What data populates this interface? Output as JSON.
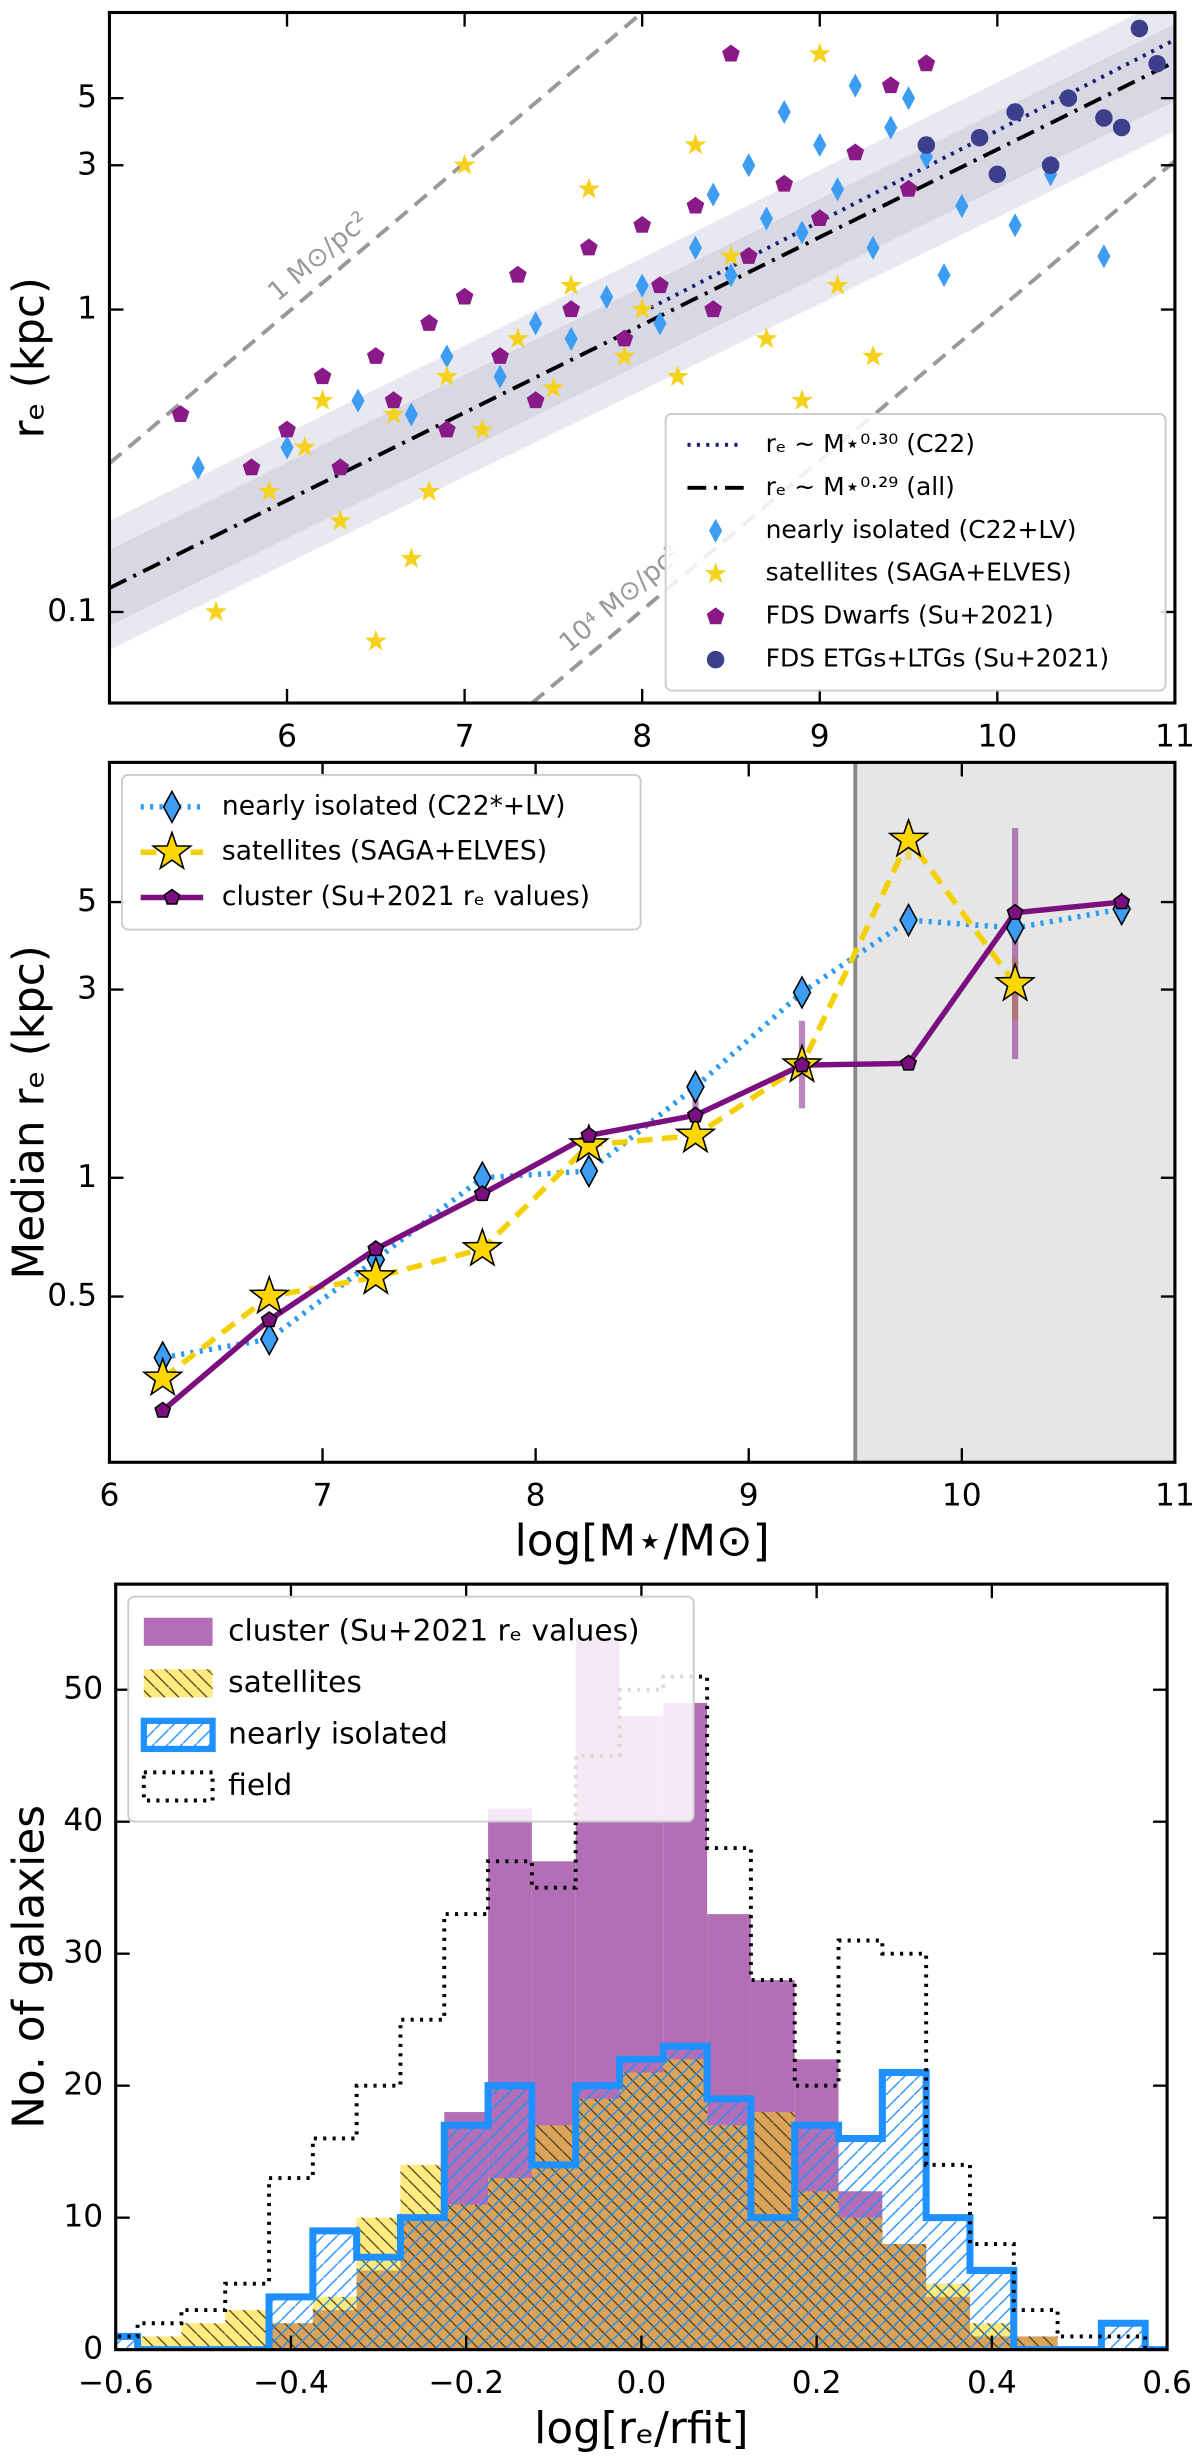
{
  "chart_data": [
    {
      "type": "scatter",
      "ylabel": "rₑ (kpc)",
      "xlim": [
        5,
        11
      ],
      "ylim": [
        0.05,
        9.6
      ],
      "yscale": "log",
      "xticks": [
        6,
        7,
        8,
        9,
        10,
        11
      ],
      "yticks": [
        0.1,
        1,
        3,
        5
      ],
      "legend": "lower right",
      "bands": [
        {
          "x": [
            5,
            11
          ],
          "lower": [
            0.075,
            3.9
          ],
          "upper": [
            0.2,
            11
          ]
        },
        {
          "x": [
            5,
            11
          ],
          "lower": [
            0.09,
            4.9
          ],
          "upper": [
            0.16,
            8.8
          ]
        }
      ],
      "reference_lines": [
        {
          "label": "1 M⊙/pc²",
          "x": [
            5,
            8
          ],
          "values": [
            0.31,
            9.6
          ]
        },
        {
          "label": "10⁴ M⊙/pc²",
          "x": [
            7.38,
            11
          ],
          "values": [
            0.05,
            3.1
          ]
        }
      ],
      "series": [
        {
          "name": "rₑ ~ M⋆⁰·³⁰ (C22)",
          "kind": "line",
          "linestyle": "dotted",
          "color": "#1c1c70",
          "x": [
            8,
            11
          ],
          "values": [
            0.98,
            7.8
          ]
        },
        {
          "name": "rₑ ~ M⋆⁰·²⁹ (all)",
          "kind": "line",
          "linestyle": "dashdot",
          "color": "#000000",
          "x": [
            5,
            11
          ],
          "values": [
            0.12,
            6.6
          ]
        },
        {
          "name": "nearly isolated (C22+LV)",
          "marker": "diamond",
          "color": "#3d9df3",
          "x": [
            5.5,
            6.0,
            6.4,
            6.7,
            6.9,
            7.2,
            7.4,
            7.6,
            7.8,
            8.0,
            8.1,
            8.3,
            8.4,
            8.5,
            8.6,
            8.7,
            8.8,
            8.9,
            9.0,
            9.1,
            9.2,
            9.3,
            9.4,
            9.5,
            9.6,
            9.7,
            9.8,
            10.1,
            10.3,
            10.6
          ],
          "values": [
            0.3,
            0.35,
            0.5,
            0.45,
            0.7,
            0.6,
            0.9,
            0.8,
            1.1,
            1.2,
            0.9,
            1.6,
            2.4,
            1.3,
            3.0,
            2.0,
            4.5,
            1.8,
            3.5,
            2.5,
            5.5,
            1.6,
            4.0,
            5.0,
            3.2,
            1.3,
            2.2,
            1.9,
            2.8,
            1.5
          ]
        },
        {
          "name": "satellites (SAGA+ELVES)",
          "marker": "star",
          "color": "#f5d21f",
          "x": [
            5.6,
            5.9,
            6.1,
            6.2,
            6.3,
            6.5,
            6.6,
            6.7,
            6.8,
            6.9,
            7.0,
            7.1,
            7.3,
            7.5,
            7.6,
            7.7,
            7.9,
            8.0,
            8.2,
            8.3,
            8.5,
            8.7,
            8.9,
            9.0,
            9.1,
            9.3
          ],
          "values": [
            0.1,
            0.25,
            0.35,
            0.5,
            0.2,
            0.08,
            0.45,
            0.15,
            0.25,
            0.6,
            3.0,
            0.4,
            0.8,
            0.55,
            1.2,
            2.5,
            0.7,
            1.0,
            0.6,
            3.5,
            1.5,
            0.8,
            0.5,
            7.0,
            1.2,
            0.7
          ]
        },
        {
          "name": "FDS Dwarfs (Su+2021)",
          "marker": "pentagon",
          "color": "#8b1a89",
          "x": [
            5.4,
            5.8,
            6.0,
            6.2,
            6.3,
            6.5,
            6.6,
            6.8,
            6.9,
            7.0,
            7.2,
            7.3,
            7.4,
            7.6,
            7.7,
            7.9,
            8.0,
            8.1,
            8.3,
            8.4,
            8.5,
            8.6,
            8.8,
            9.0,
            9.2,
            9.4,
            9.5,
            9.6,
            10.3
          ],
          "values": [
            0.45,
            0.3,
            0.4,
            0.6,
            0.3,
            0.7,
            0.5,
            0.9,
            0.4,
            1.1,
            0.7,
            1.3,
            0.5,
            1.0,
            1.6,
            0.8,
            1.9,
            1.2,
            2.2,
            1.0,
            7.0,
            1.5,
            2.6,
            2.0,
            3.3,
            5.5,
            2.5,
            6.5,
            3.0
          ]
        },
        {
          "name": "FDS ETGs+LTGs (Su+2021)",
          "marker": "circle",
          "color": "#3b3f8c",
          "x": [
            9.6,
            9.9,
            10.0,
            10.1,
            10.3,
            10.4,
            10.6,
            10.7,
            10.8,
            10.9
          ],
          "values": [
            3.5,
            3.7,
            2.8,
            4.5,
            3.0,
            5.0,
            4.3,
            4.0,
            8.5,
            6.5
          ]
        }
      ]
    },
    {
      "type": "line",
      "xlabel": "log[M⋆/M⊙]",
      "ylabel": "Median rₑ (kpc)",
      "xlim": [
        6,
        11
      ],
      "ylim": [
        0.19,
        11.3
      ],
      "yscale": "log",
      "xticks": [
        6,
        7,
        8,
        9,
        10,
        11
      ],
      "yticks": [
        0.5,
        1,
        3,
        5
      ],
      "legend": "upper left",
      "vline": 9.5,
      "shade": [
        9.5,
        11
      ],
      "series": [
        {
          "name": "nearly isolated (C22*+LV)",
          "marker": "diamond",
          "linestyle": "dotted",
          "color": "#2b9cf0",
          "x": [
            6.25,
            6.75,
            7.25,
            7.75,
            8.25,
            8.75,
            9.25,
            9.75,
            10.25,
            10.75
          ],
          "values": [
            0.35,
            0.39,
            0.62,
            1.0,
            1.04,
            1.7,
            2.95,
            4.5,
            4.3,
            4.8
          ],
          "yerr_low": [
            null,
            null,
            null,
            null,
            null,
            null,
            null,
            null,
            null,
            null
          ],
          "yerr_high": [
            null,
            null,
            null,
            null,
            null,
            null,
            null,
            null,
            null,
            null
          ]
        },
        {
          "name": "satellites (SAGA+ELVES)",
          "marker": "star",
          "linestyle": "dashed",
          "color": "#f5d000",
          "x": [
            6.25,
            6.75,
            7.25,
            7.75,
            8.25,
            8.75,
            9.25,
            9.75,
            10.25
          ],
          "values": [
            0.31,
            0.5,
            0.56,
            0.66,
            1.21,
            1.28,
            1.93,
            7.2,
            3.1
          ],
          "yerr_low": [
            null,
            null,
            null,
            null,
            null,
            null,
            null,
            6.4,
            2.5
          ],
          "yerr_high": [
            null,
            null,
            null,
            null,
            null,
            null,
            null,
            8.0,
            3.6
          ]
        },
        {
          "name": "cluster (Su+2021 rₑ values)",
          "marker": "pentagon",
          "linestyle": "solid",
          "color": "#7b0f80",
          "x": [
            6.25,
            6.75,
            7.25,
            7.75,
            8.25,
            8.75,
            9.25,
            9.75,
            10.25,
            10.75
          ],
          "values": [
            0.257,
            0.436,
            0.66,
            0.91,
            1.28,
            1.44,
            1.93,
            1.95,
            4.7,
            5.0
          ],
          "yerr_low": [
            null,
            null,
            null,
            null,
            null,
            1.3,
            1.5,
            null,
            2.0,
            null
          ],
          "yerr_high": [
            null,
            null,
            null,
            null,
            null,
            1.58,
            2.5,
            null,
            7.7,
            null
          ]
        }
      ]
    },
    {
      "type": "histogram",
      "xlabel": "log[rₑ/rfit]",
      "ylabel": "No. of galaxies",
      "xlim": [
        -0.6,
        0.6
      ],
      "ylim": [
        0,
        58
      ],
      "xticks": [
        {
          "value": -0.6,
          "label": "−0.6"
        },
        {
          "value": -0.4,
          "label": "−0.4"
        },
        {
          "value": -0.2,
          "label": "−0.2"
        },
        {
          "value": 0,
          "label": "0.0"
        },
        0.2,
        0.4,
        0.6
      ],
      "yticks": [
        0,
        10,
        20,
        30,
        40,
        50
      ],
      "legend": "upper left",
      "bins": [
        -0.625,
        -0.575,
        -0.525,
        -0.475,
        -0.425,
        -0.375,
        -0.325,
        -0.275,
        -0.225,
        -0.175,
        -0.125,
        -0.075,
        -0.025,
        0.025,
        0.075,
        0.125,
        0.175,
        0.225,
        0.275,
        0.325,
        0.375,
        0.425,
        0.475,
        0.525,
        0.575,
        0.625
      ],
      "series": [
        {
          "name": "cluster (Su+2021 rₑ values)",
          "histtype": "stepfilled",
          "color": "#b26fb5",
          "values": [
            0,
            0,
            0,
            0,
            2,
            3,
            6,
            10,
            18,
            41,
            37,
            54,
            48,
            49,
            33,
            28,
            22,
            12,
            8,
            4,
            1,
            1,
            0,
            0,
            0
          ]
        },
        {
          "name": "satellites",
          "histtype": "stepfilled",
          "hatch": "\\",
          "color": "#ffd700",
          "values": [
            0,
            1,
            2,
            3,
            2,
            4,
            10,
            14,
            11,
            13,
            17,
            19,
            21,
            22,
            17,
            18,
            12,
            10,
            8,
            5,
            2,
            1,
            0,
            0,
            0
          ]
        },
        {
          "name": "nearly isolated",
          "histtype": "step",
          "hatch": "/",
          "linestyle": "solid",
          "color": "#1e90ff",
          "values": [
            1,
            0,
            0,
            0,
            4,
            9,
            7,
            10,
            17,
            20,
            14,
            20,
            22,
            23,
            19,
            10,
            17,
            16,
            21,
            10,
            6,
            0,
            0,
            2,
            0
          ]
        },
        {
          "name": "field",
          "histtype": "step",
          "linestyle": "dotted",
          "color": "#000000",
          "values": [
            1,
            2,
            3,
            5,
            13,
            16,
            20,
            25,
            33,
            37,
            35,
            45,
            50,
            51,
            38,
            28,
            20,
            31,
            30,
            14,
            8,
            3,
            1,
            1,
            0
          ]
        }
      ]
    }
  ]
}
